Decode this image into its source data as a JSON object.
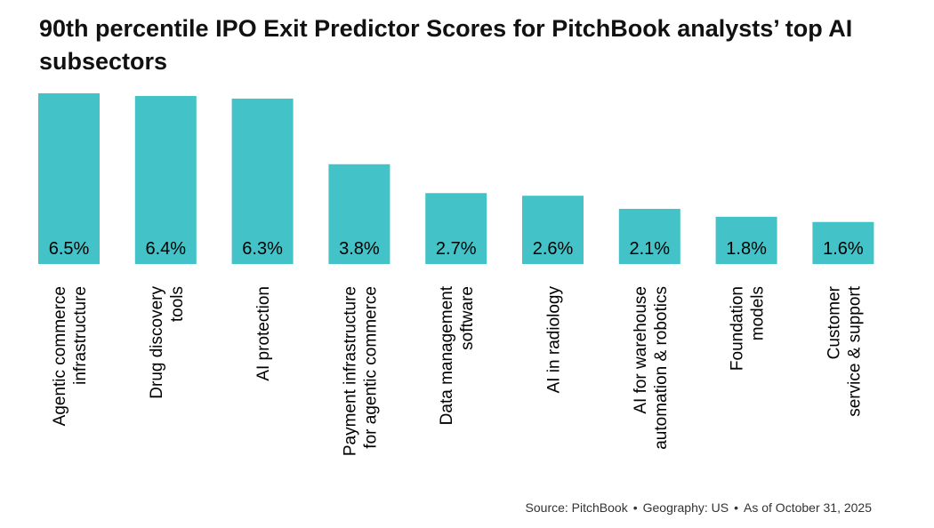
{
  "chart_data": {
    "type": "bar",
    "title": "90th percentile IPO Exit Predictor Scores for PitchBook analysts’ top AI subsectors",
    "categories": [
      [
        "Agentic commerce",
        "infrastructure"
      ],
      [
        "Drug discovery",
        "tools"
      ],
      [
        "AI protection"
      ],
      [
        "Payment infrastructure",
        "for agentic commerce"
      ],
      [
        "Data management",
        "software"
      ],
      [
        "AI in radiology"
      ],
      [
        "AI for warehouse",
        "automation & robotics"
      ],
      [
        "Foundation",
        "models"
      ],
      [
        "Customer",
        "service & support"
      ]
    ],
    "values": [
      6.5,
      6.4,
      6.3,
      3.8,
      2.7,
      2.6,
      2.1,
      1.8,
      1.6
    ],
    "value_labels": [
      "6.5%",
      "6.4%",
      "6.3%",
      "3.8%",
      "2.7%",
      "2.6%",
      "2.1%",
      "1.8%",
      "1.6%"
    ],
    "ylim": [
      0,
      6.5
    ],
    "xlabel": "",
    "ylabel": "",
    "grid": false,
    "bar_color": "#43c3c8"
  },
  "footer": {
    "source": "Source: PitchBook",
    "geography": "Geography: US",
    "as_of": "As of October 31, 2025",
    "separator": "•"
  }
}
